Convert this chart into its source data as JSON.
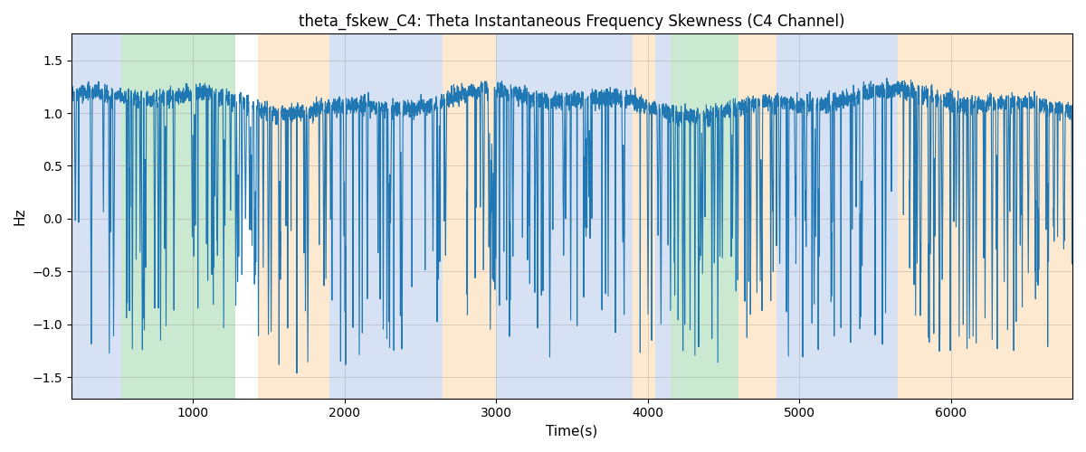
{
  "title": "theta_fskew_C4: Theta Instantaneous Frequency Skewness (C4 Channel)",
  "xlabel": "Time(s)",
  "ylabel": "Hz",
  "ylim": [
    -1.7,
    1.75
  ],
  "xlim": [
    200,
    6800
  ],
  "line_color": "#1f77b4",
  "line_width": 0.8,
  "background_color": "#ffffff",
  "grid_color": "gray",
  "grid_alpha": 0.4,
  "bg_regions": [
    {
      "xmin": 200,
      "xmax": 530,
      "color": "#aec6e8",
      "alpha": 0.5
    },
    {
      "xmin": 530,
      "xmax": 1280,
      "color": "#98d4a3",
      "alpha": 0.5
    },
    {
      "xmin": 1430,
      "xmax": 1900,
      "color": "#fdd5a0",
      "alpha": 0.5
    },
    {
      "xmin": 1900,
      "xmax": 2650,
      "color": "#aec6e8",
      "alpha": 0.5
    },
    {
      "xmin": 2650,
      "xmax": 3000,
      "color": "#fdd5a0",
      "alpha": 0.5
    },
    {
      "xmin": 3000,
      "xmax": 3900,
      "color": "#aec6e8",
      "alpha": 0.5
    },
    {
      "xmin": 3900,
      "xmax": 4050,
      "color": "#fdd5a0",
      "alpha": 0.5
    },
    {
      "xmin": 4050,
      "xmax": 4150,
      "color": "#aec6e8",
      "alpha": 0.5
    },
    {
      "xmin": 4150,
      "xmax": 4600,
      "color": "#98d4a3",
      "alpha": 0.5
    },
    {
      "xmin": 4600,
      "xmax": 4850,
      "color": "#fdd5a0",
      "alpha": 0.5
    },
    {
      "xmin": 4850,
      "xmax": 5650,
      "color": "#aec6e8",
      "alpha": 0.5
    },
    {
      "xmin": 5650,
      "xmax": 6800,
      "color": "#fdd5a0",
      "alpha": 0.5
    }
  ],
  "seed": 42,
  "n_points": 6601,
  "time_start": 200,
  "time_end": 6800
}
